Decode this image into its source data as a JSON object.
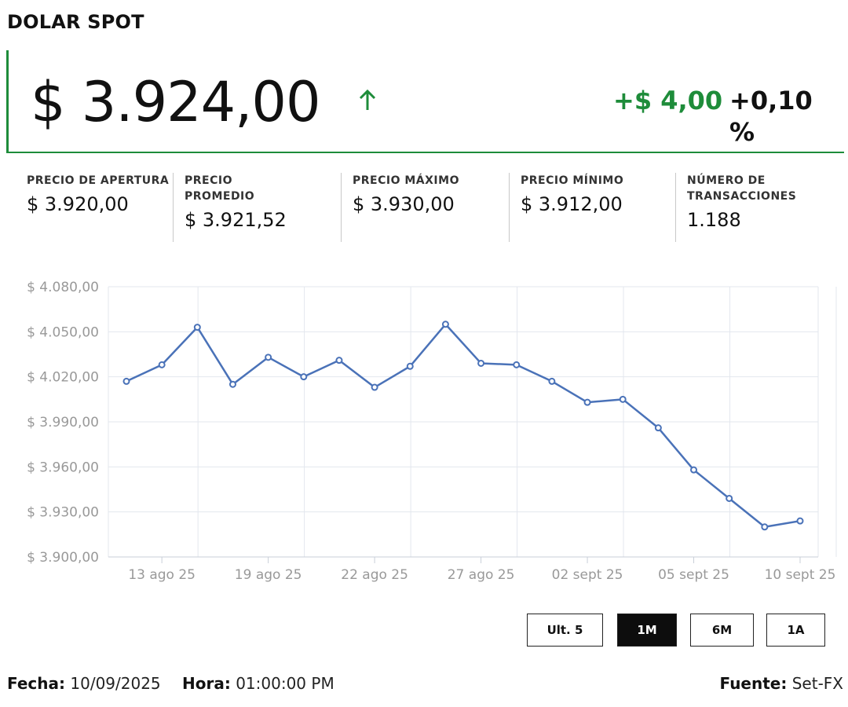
{
  "header": {
    "title": "DOLAR SPOT",
    "price": "$ 3.924,00",
    "change_abs": "+$ 4,00",
    "change_pct": "+0,10 %",
    "trend_icon": "arrow-up-icon",
    "accent_color": "#1e8c3a"
  },
  "stats": [
    {
      "label": "PRECIO DE APERTURA",
      "value": "$ 3.920,00"
    },
    {
      "label": "PRECIO PROMEDIO",
      "value": "$ 3.921,52"
    },
    {
      "label": "PRECIO MÁXIMO",
      "value": "$ 3.930,00"
    },
    {
      "label": "PRECIO MÍNIMO",
      "value": "$ 3.912,00"
    },
    {
      "label": "NÚMERO DE TRANSACCIONES",
      "value": "1.188"
    }
  ],
  "chart_data": {
    "type": "line",
    "line_color": "#4a72b8",
    "grid": true,
    "ylim": [
      3900,
      4080
    ],
    "yticks": [
      4080,
      4050,
      4020,
      3990,
      3960,
      3930,
      3900
    ],
    "ytick_labels": [
      "$ 4.080,00",
      "$ 4.050,00",
      "$ 4.020,00",
      "$ 3.990,00",
      "$ 3.960,00",
      "$ 3.930,00",
      "$ 3.900,00"
    ],
    "xtick_labels": [
      "13 ago 25",
      "19 ago 25",
      "22 ago 25",
      "27 ago 25",
      "02 sept 25",
      "05 sept 25",
      "10 sept 25"
    ],
    "xtick_positions": [
      1,
      4,
      7,
      10,
      13,
      16,
      19
    ],
    "series": [
      {
        "values": [
          4017,
          4028,
          4053,
          4015,
          4033,
          4020,
          4031,
          4013,
          4027,
          4055,
          4029,
          4028,
          4017,
          4003,
          4005,
          3986,
          3958,
          3939,
          3920,
          3924
        ]
      }
    ]
  },
  "range_buttons": [
    {
      "label": "Ult. 5",
      "active": false
    },
    {
      "label": "1M",
      "active": true
    },
    {
      "label": "6M",
      "active": false
    },
    {
      "label": "1A",
      "active": false
    }
  ],
  "footer": {
    "date_label": "Fecha:",
    "date_value": "10/09/2025",
    "time_label": "Hora:",
    "time_value": "01:00:00 PM",
    "source_label": "Fuente:",
    "source_value": "Set-FX"
  }
}
